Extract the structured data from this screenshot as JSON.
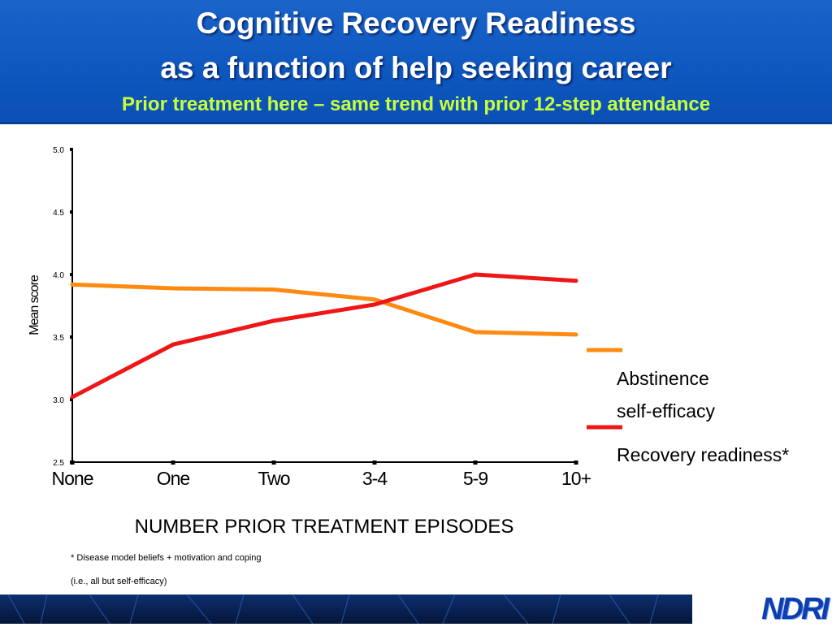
{
  "header": {
    "title_line1": "Cognitive Recovery Readiness",
    "title_line2": "as a function of help seeking career",
    "subtitle": "Prior treatment here – same trend with prior 12-step attendance"
  },
  "chart_data": {
    "type": "line",
    "title": "",
    "xlabel": "NUMBER PRIOR TREATMENT EPISODES",
    "ylabel": "Mean score",
    "categories": [
      "None",
      "One",
      "Two",
      "3-4",
      "5-9",
      "10+"
    ],
    "ylim": [
      2.5,
      5.0
    ],
    "yticks": [
      2.5,
      3.0,
      3.5,
      4.0,
      4.5,
      5.0
    ],
    "ytick_labels": [
      "2.5",
      "3.0",
      "3.5",
      "4.0",
      "4.5",
      "5.0"
    ],
    "grid": false,
    "legend_position": "right",
    "series": [
      {
        "name": "Abstinence self-efficacy",
        "legend_lines": [
          "Abstinence",
          "self-efficacy"
        ],
        "color": "#ff8a12",
        "values": [
          3.92,
          3.89,
          3.88,
          3.8,
          3.54,
          3.52
        ]
      },
      {
        "name": "Recovery readiness*",
        "legend_lines": [
          "Recovery readiness*"
        ],
        "color": "#ee1616",
        "values": [
          3.02,
          3.44,
          3.63,
          3.76,
          4.0,
          3.95
        ]
      }
    ]
  },
  "footnotes": {
    "line1": "* Disease model beliefs + motivation and coping",
    "line2": "(i.e., all but self-efficacy)"
  },
  "logo": {
    "text": "NDRI"
  }
}
